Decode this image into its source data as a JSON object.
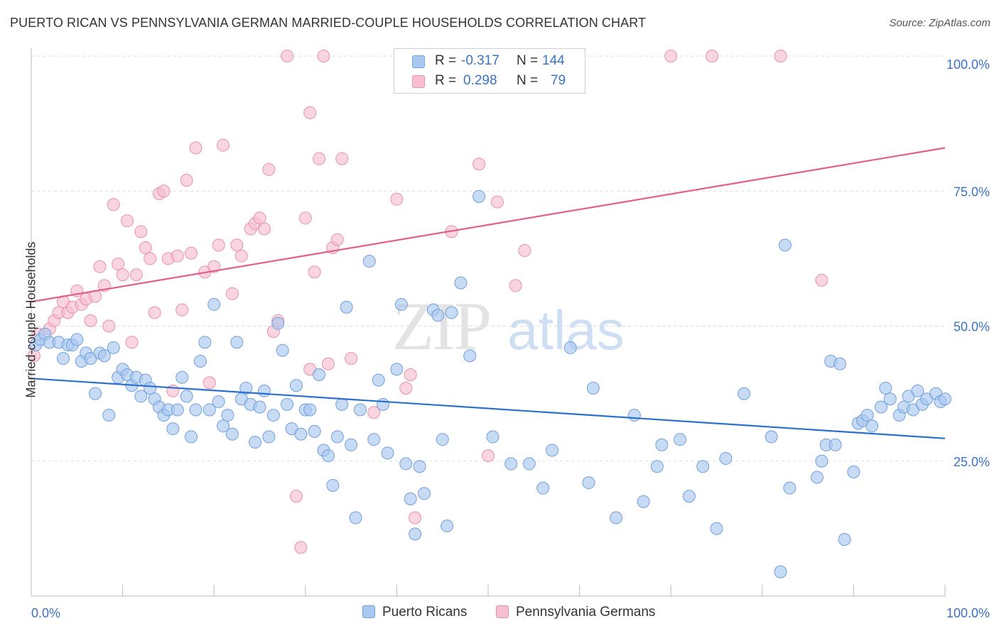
{
  "title": "PUERTO RICAN VS PENNSYLVANIA GERMAN MARRIED-COUPLE HOUSEHOLDS CORRELATION CHART",
  "source": "Source: ZipAtlas.com",
  "watermark": {
    "zip": "ZIP",
    "atlas": "atlas"
  },
  "legend": {
    "r_label": "R =",
    "n_label": "N =",
    "series": [
      {
        "name": "Puerto Ricans",
        "r": "-0.317",
        "n": "144"
      },
      {
        "name": "Pennsylvania Germans",
        "r": "0.298",
        "n": "79"
      }
    ]
  },
  "colors": {
    "blue_fill": "#a9c8f0",
    "blue_stroke": "#6f9fdc",
    "blue_line": "#2a6fd0",
    "pink_fill": "#f6bfd0",
    "pink_stroke": "#ea8fae",
    "pink_line": "#e0608a",
    "axis_label": "#3a72c8",
    "grid": "#dddddd"
  },
  "chart_data": {
    "type": "scatter",
    "title": "PUERTO RICAN VS PENNSYLVANIA GERMAN MARRIED-COUPLE HOUSEHOLDS CORRELATION CHART",
    "xlabel": "",
    "ylabel": "Married-couple Households",
    "xlim": [
      0,
      100
    ],
    "ylim": [
      0,
      100
    ],
    "x_tick_labels": [
      "0.0%",
      "100.0%"
    ],
    "y_tick_labels": [
      "25.0%",
      "50.0%",
      "75.0%",
      "100.0%"
    ],
    "y_ticks": [
      25,
      50,
      75,
      100
    ],
    "grid": true,
    "legend_position": "top-center",
    "series": [
      {
        "name": "Puerto Ricans",
        "trend": {
          "x": [
            0,
            100
          ],
          "y": [
            40.3,
            29.2
          ]
        },
        "points": [
          [
            0.5,
            46.5
          ],
          [
            1,
            47.5
          ],
          [
            1.5,
            48.5
          ],
          [
            2,
            47
          ],
          [
            3,
            47
          ],
          [
            3.5,
            44
          ],
          [
            4,
            46.5
          ],
          [
            4.5,
            46.5
          ],
          [
            5,
            47.5
          ],
          [
            5.5,
            43.5
          ],
          [
            6,
            45
          ],
          [
            6.5,
            44
          ],
          [
            7,
            37.5
          ],
          [
            7.5,
            45
          ],
          [
            8,
            44.5
          ],
          [
            8.5,
            33.5
          ],
          [
            9,
            46
          ],
          [
            9.5,
            40.5
          ],
          [
            10,
            42
          ],
          [
            10.5,
            41
          ],
          [
            11,
            39
          ],
          [
            11.5,
            40.5
          ],
          [
            12,
            37
          ],
          [
            12.5,
            40
          ],
          [
            13,
            38.5
          ],
          [
            13.5,
            36.5
          ],
          [
            14,
            35
          ],
          [
            14.5,
            33.5
          ],
          [
            15,
            34.5
          ],
          [
            15.5,
            31
          ],
          [
            16,
            34.5
          ],
          [
            16.5,
            40.5
          ],
          [
            17,
            37
          ],
          [
            17.5,
            29.5
          ],
          [
            18,
            34.5
          ],
          [
            18.5,
            43.5
          ],
          [
            19,
            47
          ],
          [
            19.5,
            34.5
          ],
          [
            20,
            54
          ],
          [
            20.5,
            36
          ],
          [
            21,
            31.5
          ],
          [
            21.5,
            33.5
          ],
          [
            22,
            30
          ],
          [
            22.5,
            47
          ],
          [
            23,
            36.5
          ],
          [
            23.5,
            38.5
          ],
          [
            24,
            35.5
          ],
          [
            24.5,
            28.5
          ],
          [
            25,
            35
          ],
          [
            25.5,
            38
          ],
          [
            26,
            29.5
          ],
          [
            26.5,
            33.5
          ],
          [
            27,
            50.5
          ],
          [
            27.5,
            45.5
          ],
          [
            28,
            35.5
          ],
          [
            28.5,
            31
          ],
          [
            29,
            39
          ],
          [
            29.5,
            30
          ],
          [
            30,
            34.5
          ],
          [
            30.5,
            34.5
          ],
          [
            31,
            30.5
          ],
          [
            31.5,
            41
          ],
          [
            32,
            27
          ],
          [
            32.5,
            26
          ],
          [
            33,
            20.5
          ],
          [
            33.5,
            29.5
          ],
          [
            34,
            35.5
          ],
          [
            34.5,
            53.5
          ],
          [
            35,
            28
          ],
          [
            35.5,
            14.5
          ],
          [
            36,
            34.5
          ],
          [
            37,
            62
          ],
          [
            37.5,
            29
          ],
          [
            38,
            40
          ],
          [
            38.5,
            35.5
          ],
          [
            39,
            26.5
          ],
          [
            40,
            42
          ],
          [
            40.5,
            54
          ],
          [
            41,
            24.5
          ],
          [
            41.5,
            18
          ],
          [
            42,
            11.5
          ],
          [
            42.5,
            24
          ],
          [
            43,
            19
          ],
          [
            44,
            53
          ],
          [
            44.5,
            52
          ],
          [
            45,
            29
          ],
          [
            45.5,
            13
          ],
          [
            46,
            52.5
          ],
          [
            47,
            58
          ],
          [
            48,
            44.5
          ],
          [
            49,
            74
          ],
          [
            50.5,
            29.5
          ],
          [
            52.5,
            24.5
          ],
          [
            54.5,
            24.5
          ],
          [
            56,
            20
          ],
          [
            57,
            27
          ],
          [
            59,
            46
          ],
          [
            61,
            21
          ],
          [
            61.5,
            38.5
          ],
          [
            64,
            14.5
          ],
          [
            66,
            33.5
          ],
          [
            67,
            17.5
          ],
          [
            68.5,
            24
          ],
          [
            69,
            28
          ],
          [
            71,
            29
          ],
          [
            72,
            18.5
          ],
          [
            73.5,
            24
          ],
          [
            75,
            12.5
          ],
          [
            76,
            25.5
          ],
          [
            78,
            37.5
          ],
          [
            81,
            29.5
          ],
          [
            82,
            4.5
          ],
          [
            82.5,
            65
          ],
          [
            83,
            20
          ],
          [
            86,
            22
          ],
          [
            86.5,
            25
          ],
          [
            87,
            28
          ],
          [
            87.5,
            43.5
          ],
          [
            88,
            28
          ],
          [
            88.5,
            43
          ],
          [
            89,
            10.5
          ],
          [
            90,
            23
          ],
          [
            90.5,
            32
          ],
          [
            91,
            32.5
          ],
          [
            91.5,
            33.5
          ],
          [
            92,
            31.5
          ],
          [
            93,
            35
          ],
          [
            93.5,
            38.5
          ],
          [
            94,
            36.5
          ],
          [
            95,
            33.5
          ],
          [
            95.5,
            35
          ],
          [
            96,
            37
          ],
          [
            96.5,
            34.5
          ],
          [
            97,
            38
          ],
          [
            97.5,
            35.5
          ],
          [
            98,
            36.5
          ],
          [
            99,
            37.5
          ],
          [
            99.5,
            36
          ],
          [
            100,
            36.5
          ]
        ]
      },
      {
        "name": "Pennsylvania Germans",
        "trend": {
          "x": [
            0,
            100
          ],
          "y": [
            54.5,
            83
          ]
        },
        "points": [
          [
            0.3,
            44.5
          ],
          [
            0.8,
            48.5
          ],
          [
            2,
            49.5
          ],
          [
            2.5,
            51
          ],
          [
            3,
            52.5
          ],
          [
            3.5,
            54.5
          ],
          [
            4,
            52.5
          ],
          [
            4.5,
            53.5
          ],
          [
            5,
            56.5
          ],
          [
            5.5,
            54
          ],
          [
            6,
            55
          ],
          [
            6.5,
            51
          ],
          [
            7,
            55.5
          ],
          [
            7.5,
            61
          ],
          [
            8,
            57.5
          ],
          [
            8.5,
            50
          ],
          [
            9,
            72.5
          ],
          [
            9.5,
            61.5
          ],
          [
            10,
            59.5
          ],
          [
            10.5,
            69.5
          ],
          [
            11,
            47
          ],
          [
            11.5,
            59.5
          ],
          [
            12,
            67.5
          ],
          [
            12.5,
            64.5
          ],
          [
            13,
            62.5
          ],
          [
            13.5,
            52.5
          ],
          [
            14,
            74.5
          ],
          [
            14.5,
            75
          ],
          [
            15,
            62.5
          ],
          [
            15.5,
            38
          ],
          [
            16,
            63
          ],
          [
            16.5,
            53
          ],
          [
            17,
            77
          ],
          [
            17.5,
            63.5
          ],
          [
            18,
            83
          ],
          [
            19,
            60
          ],
          [
            19.5,
            39.5
          ],
          [
            20,
            61
          ],
          [
            20.5,
            65
          ],
          [
            21,
            83.5
          ],
          [
            22,
            56
          ],
          [
            22.5,
            65
          ],
          [
            23,
            63
          ],
          [
            24,
            68
          ],
          [
            24.5,
            69
          ],
          [
            25,
            70
          ],
          [
            25.5,
            68
          ],
          [
            26,
            79
          ],
          [
            26.5,
            49
          ],
          [
            27,
            51
          ],
          [
            28,
            100
          ],
          [
            29,
            18.5
          ],
          [
            29.5,
            9
          ],
          [
            30,
            70
          ],
          [
            30.5,
            89.5
          ],
          [
            31,
            60
          ],
          [
            31.5,
            81
          ],
          [
            32,
            100
          ],
          [
            32.5,
            43
          ],
          [
            33,
            64.5
          ],
          [
            33.5,
            66
          ],
          [
            34,
            81
          ],
          [
            35,
            44
          ],
          [
            37.5,
            34
          ],
          [
            40,
            73.5
          ],
          [
            41,
            38.5
          ],
          [
            42,
            14.5
          ],
          [
            46,
            67.5
          ],
          [
            49,
            80
          ],
          [
            50,
            26
          ],
          [
            51,
            73
          ],
          [
            53,
            57.5
          ],
          [
            54,
            64
          ],
          [
            70,
            100
          ],
          [
            74.5,
            100
          ],
          [
            82,
            100
          ],
          [
            86.5,
            58.5
          ],
          [
            41.5,
            41
          ],
          [
            30.5,
            42
          ]
        ]
      }
    ]
  }
}
